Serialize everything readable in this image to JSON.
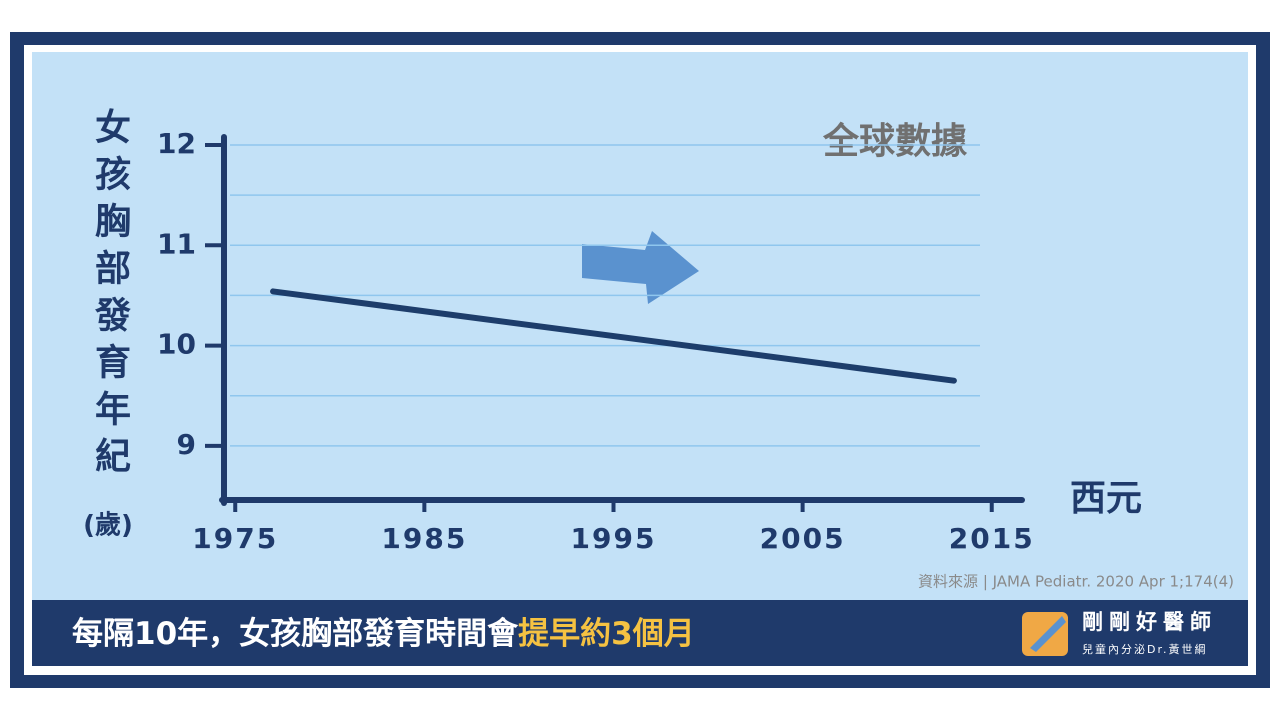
{
  "chart_data": {
    "type": "line",
    "annotation": "全球數據",
    "y_label": "女孩胸部發育年紀",
    "y_unit": "(歲)",
    "x_label": "西元",
    "x": [
      1977,
      2013
    ],
    "series": [
      {
        "color": "#1d3d6b",
        "values": [
          10.54,
          9.65
        ]
      }
    ],
    "xlim": [
      1974.3,
      2016.6
    ],
    "xticks": [
      1975,
      1985,
      1995,
      2005,
      2015
    ],
    "ylim": [
      8.46,
      12.08
    ],
    "yticks": [
      9,
      10,
      11,
      12
    ],
    "minor_yticks": [
      9.5,
      10.5,
      11.5
    ],
    "grid": true
  },
  "source": "資料來源 | JAMA Pediatr. 2020 Apr 1;174(4)",
  "caption": {
    "text": "每隔10年，女孩胸部發育時間會",
    "highlight": "提早約3個月"
  },
  "logo": {
    "name": "剛剛好醫師",
    "subtitle": "兒童內分泌Dr.黃世綱"
  }
}
